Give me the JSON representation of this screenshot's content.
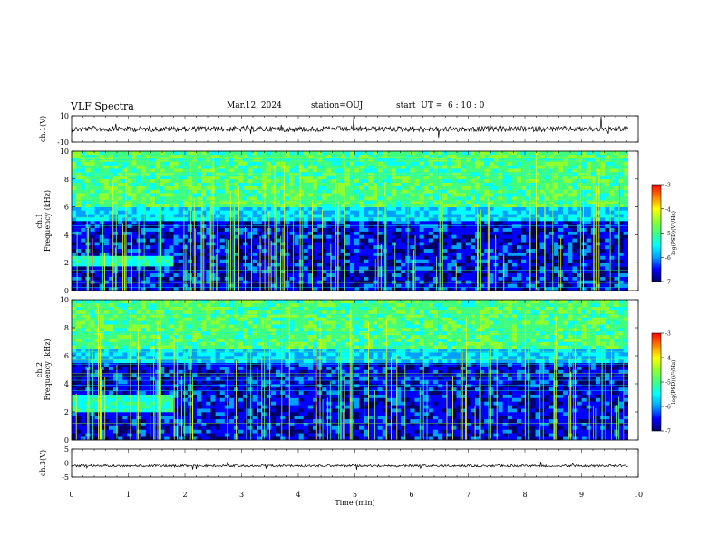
{
  "header": {
    "title": "VLF Spectra",
    "date": "Mar.12, 2024",
    "station": "station=OUJ",
    "start": "start  UT =  6 : 10 : 0"
  },
  "colors": {
    "stops": [
      "#000066",
      "#0000ff",
      "#00a0ff",
      "#00ffff",
      "#40ff80",
      "#90ff30",
      "#ffff00",
      "#ff8000",
      "#ff0000",
      "#ffffff"
    ]
  },
  "chart_data": [
    {
      "type": "line",
      "name": "ch1-waveform",
      "ylabel": "ch.1(V)",
      "ylim": [
        -10,
        10
      ],
      "yticks": [
        "10",
        "-10"
      ],
      "xlim": [
        0,
        10
      ],
      "baseline": 0,
      "grid": false
    },
    {
      "type": "heatmap",
      "name": "ch1-spectrogram",
      "ylabel": "ch.1\nFrequency (kHz)",
      "ylabel_lines": [
        "ch.1",
        "Frequency (kHz)"
      ],
      "ylim": [
        0,
        10
      ],
      "yticks": [
        "0",
        "2",
        "4",
        "6",
        "8",
        "10"
      ],
      "xlim": [
        0,
        10
      ],
      "data_end_min": 9.82,
      "colorbar": {
        "label": "log(PSD)(V²/Hz)",
        "range": [
          -7,
          -3
        ],
        "ticks": [
          "-3",
          "-4",
          "-5",
          "-6",
          "-7"
        ]
      },
      "features": {
        "enhanced_band_khz": [
          1.7,
          2.3
        ],
        "enhanced_band_end_min": 1.75,
        "high_band_khz_start": 6.0
      }
    },
    {
      "type": "heatmap",
      "name": "ch2-spectrogram",
      "ylabel": "ch.2\nFrequency (kHz)",
      "ylabel_lines": [
        "ch.2",
        "Frequency (kHz)"
      ],
      "ylim": [
        0,
        10
      ],
      "yticks": [
        "0",
        "2",
        "4",
        "6",
        "8",
        "10"
      ],
      "xlim": [
        0,
        10
      ],
      "data_end_min": 9.82,
      "colorbar": {
        "label": "log(PSD)(V²/Hz)",
        "range": [
          -7,
          -3
        ],
        "ticks": [
          "-3",
          "-4",
          "-5",
          "-6",
          "-7"
        ]
      },
      "features": {
        "enhanced_band_khz": [
          2.0,
          3.2
        ],
        "enhanced_band_end_min": 1.75,
        "high_band_khz_start": 6.5
      }
    },
    {
      "type": "line",
      "name": "ch3-waveform",
      "ylabel": "ch.3(V)",
      "ylim": [
        -5,
        5
      ],
      "yticks": [
        "5",
        "0",
        "-5"
      ],
      "xlim": [
        0,
        10
      ],
      "baseline": -1,
      "grid": false
    }
  ],
  "xaxis": {
    "label": "Time (min)",
    "ticks": [
      "0",
      "1",
      "2",
      "3",
      "4",
      "5",
      "6",
      "7",
      "8",
      "9",
      "10"
    ]
  }
}
